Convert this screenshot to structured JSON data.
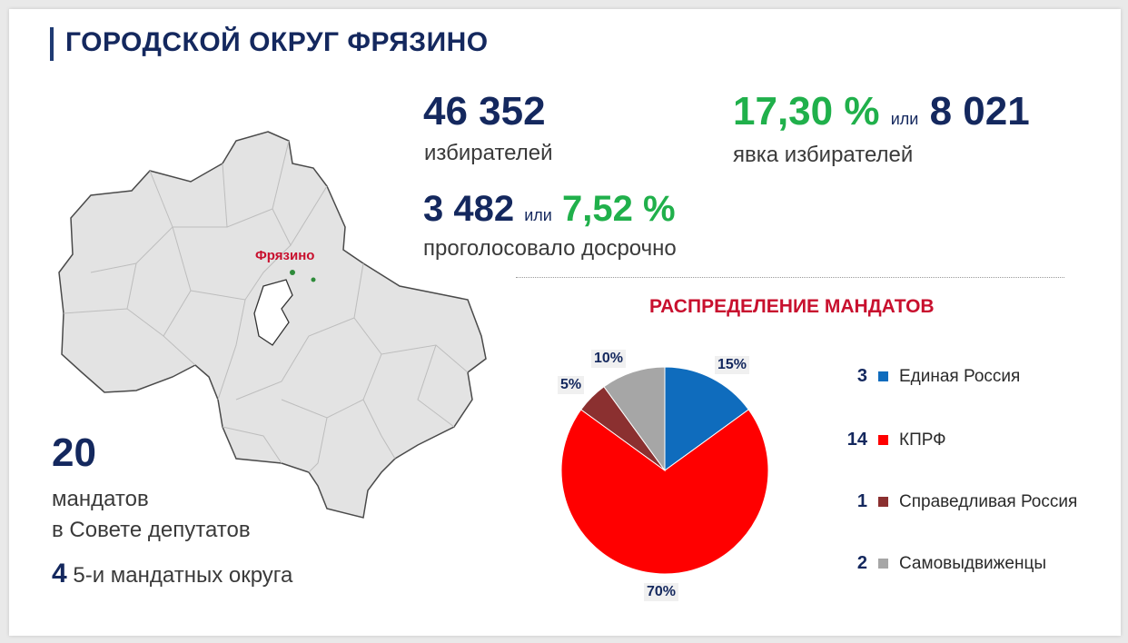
{
  "header": {
    "title": "ГОРОДСКОЙ ОКРУГ ФРЯЗИНО"
  },
  "stats": {
    "voters_value": "46 352",
    "voters_label": "избирателей",
    "early_value": "3 482",
    "early_or": "или",
    "early_percent": "7,52 %",
    "early_label": "проголосовало досрочно",
    "turnout_percent": "17,30 %",
    "turnout_or": "или",
    "turnout_value": "8 021",
    "turnout_label": "явка избирателей"
  },
  "map": {
    "label": "Фрязино"
  },
  "mandates": {
    "count": "20",
    "line1": "мандатов",
    "line2": "в Совете депутатов",
    "districts_count": "4",
    "districts_label": "5-и мандатных округа"
  },
  "chart_data": {
    "type": "pie",
    "title": "РАСПРЕДЕЛЕНИЕ МАНДАТОВ",
    "slices": [
      {
        "name": "Единая Россия",
        "count": "3",
        "value": 15,
        "label": "15%",
        "color": "#0f6cbd"
      },
      {
        "name": "КПРФ",
        "count": "14",
        "value": 70,
        "label": "70%",
        "color": "#ff0000"
      },
      {
        "name": "Справедливая Россия",
        "count": "1",
        "value": 5,
        "label": "5%",
        "color": "#8b3030"
      },
      {
        "name": "Самовыдвиженцы",
        "count": "2",
        "value": 10,
        "label": "10%",
        "color": "#a6a6a6"
      }
    ]
  }
}
